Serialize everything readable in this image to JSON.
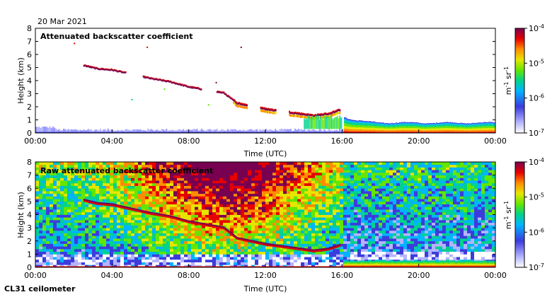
{
  "date": "20 Mar 2021",
  "instrument": "CL31 ceilometer",
  "chart_data": [
    {
      "type": "heatmap",
      "title": "Attenuated backscatter coefficient",
      "xlabel": "Time (UTC)",
      "ylabel": "Height (km)",
      "xlim": [
        0,
        24
      ],
      "ylim": [
        0,
        8
      ],
      "xticks": [
        "00:00",
        "04:00",
        "08:00",
        "12:00",
        "16:00",
        "20:00",
        "00:00"
      ],
      "yticks": [
        "0",
        "1",
        "2",
        "3",
        "4",
        "5",
        "6",
        "7",
        "8"
      ],
      "colorbar": {
        "scale": "log",
        "min": "10-7",
        "max": "10-4",
        "ticks": [
          "10-7",
          "10-6",
          "10-5",
          "10-4"
        ],
        "label": "m-1 sr-1"
      },
      "cloud_layer": [
        {
          "t": 2.5,
          "h": 5.2
        },
        {
          "t": 3.2,
          "h": 4.95
        },
        {
          "t": 4.0,
          "h": 4.85
        },
        {
          "t": 6.0,
          "h": 4.2
        },
        {
          "t": 7.0,
          "h": 3.95
        },
        {
          "t": 8.0,
          "h": 3.55
        },
        {
          "t": 9.8,
          "h": 3.1
        },
        {
          "t": 10.5,
          "h": 2.3
        },
        {
          "t": 12.0,
          "h": 1.85
        },
        {
          "t": 13.5,
          "h": 1.55
        },
        {
          "t": 14.5,
          "h": 1.35
        },
        {
          "t": 15.3,
          "h": 1.5
        },
        {
          "t": 15.9,
          "h": 1.8
        }
      ],
      "mixed_layer_top_km": [
        {
          "t": 16.2,
          "h": 1.2
        },
        {
          "t": 18.0,
          "h": 0.9
        },
        {
          "t": 20.0,
          "h": 0.8
        },
        {
          "t": 22.0,
          "h": 0.75
        },
        {
          "t": 24.0,
          "h": 0.9
        }
      ]
    },
    {
      "type": "heatmap",
      "title": "Raw attenuated backscatter coefficient",
      "xlabel": "Time (UTC)",
      "ylabel": "Height (km)",
      "xlim": [
        0,
        24
      ],
      "ylim": [
        0,
        8
      ],
      "xticks": [
        "00:00",
        "04:00",
        "08:00",
        "12:00",
        "16:00",
        "20:00",
        "00:00"
      ],
      "yticks": [
        "0",
        "1",
        "2",
        "3",
        "4",
        "5",
        "6",
        "7",
        "8"
      ],
      "colorbar": {
        "scale": "log",
        "min": "10-7",
        "max": "10-4",
        "ticks": [
          "10-7",
          "10-6",
          "10-5",
          "10-4"
        ],
        "label": "m-1 sr-1"
      }
    }
  ]
}
